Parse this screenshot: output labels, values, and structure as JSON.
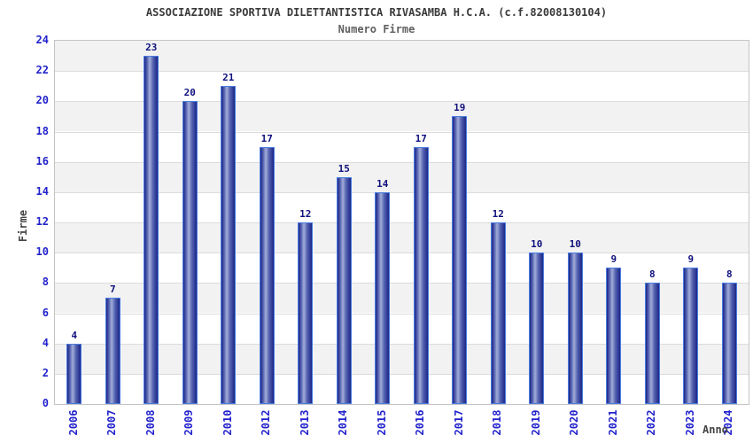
{
  "chart_data": {
    "type": "bar",
    "title": "ASSOCIAZIONE SPORTIVA DILETTANTISTICA RIVASAMBA H.C.A. (c.f.82008130104)",
    "subtitle": "Numero Firme",
    "xlabel": "Anno",
    "ylabel": "Firme",
    "categories": [
      "2006",
      "2007",
      "2008",
      "2009",
      "2010",
      "2012",
      "2013",
      "2014",
      "2015",
      "2016",
      "2017",
      "2018",
      "2019",
      "2020",
      "2021",
      "2022",
      "2023",
      "2024"
    ],
    "values": [
      4,
      7,
      23,
      20,
      21,
      17,
      12,
      15,
      14,
      17,
      19,
      12,
      10,
      10,
      9,
      8,
      9,
      8
    ],
    "ylim": [
      0,
      24
    ],
    "ytick_step": 2,
    "yticks": [
      0,
      2,
      4,
      6,
      8,
      10,
      12,
      14,
      16,
      18,
      20,
      22,
      24
    ],
    "grid": "horizontal gridlines with alternating 2-unit background bands",
    "legend": "none",
    "colors": {
      "band_gray": "#f2f2f2",
      "band_white": "#ffffff",
      "gridline": "#dcdcdc",
      "plot_border": "#c4c4c4",
      "bar_edge": "#1c2686",
      "bar_mid": "#5462b0",
      "bar_light": "#a3add9",
      "bar_border": "#4a7de0",
      "tick_label_blue": "#2222cc",
      "value_label_navy": "#10107e",
      "title_gray": "#3a3a3a",
      "axis_title_gray": "#444444"
    }
  }
}
